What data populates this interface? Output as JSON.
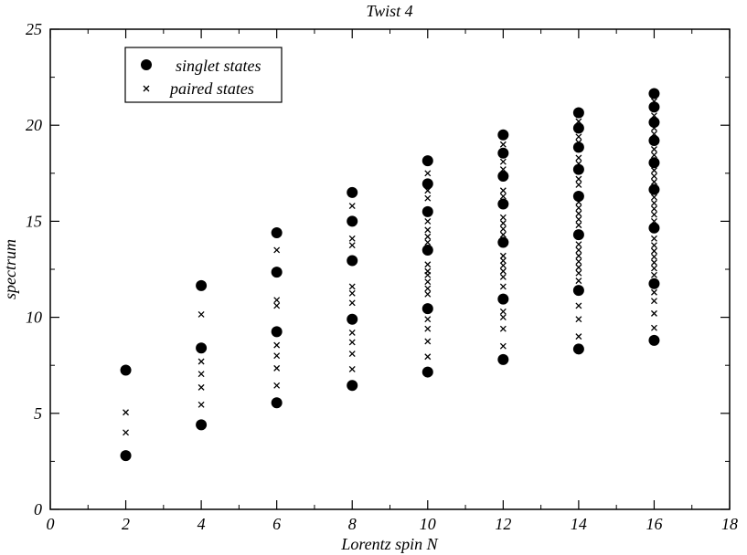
{
  "chart_data": {
    "type": "scatter",
    "title": "Twist 4",
    "xlabel": "Lorentz spin N",
    "ylabel": "spectrum",
    "xlim": [
      0,
      18
    ],
    "ylim": [
      0,
      25
    ],
    "x_ticks": [
      0,
      2,
      4,
      6,
      8,
      10,
      12,
      14,
      16,
      18
    ],
    "y_ticks": [
      0,
      5,
      10,
      15,
      20,
      25
    ],
    "x_minor_ticks": [
      1,
      3,
      5,
      7,
      9,
      11,
      13,
      15,
      17
    ],
    "y_minor_ticks": [
      2.5,
      7.5,
      12.5,
      17.5,
      22.5
    ],
    "legend_position": "top-left",
    "grid": false,
    "series": [
      {
        "name": "singlet states",
        "marker": "filled-circle",
        "color": "#000000",
        "points": [
          [
            2,
            2.8
          ],
          [
            2,
            7.25
          ],
          [
            4,
            4.4
          ],
          [
            4,
            8.4
          ],
          [
            4,
            11.65
          ],
          [
            6,
            5.55
          ],
          [
            6,
            9.25
          ],
          [
            6,
            12.35
          ],
          [
            6,
            14.4
          ],
          [
            8,
            6.45
          ],
          [
            8,
            9.9
          ],
          [
            8,
            12.95
          ],
          [
            8,
            15.0
          ],
          [
            8,
            16.5
          ],
          [
            10,
            7.15
          ],
          [
            10,
            10.45
          ],
          [
            10,
            13.5
          ],
          [
            10,
            15.5
          ],
          [
            10,
            16.95
          ],
          [
            10,
            18.15
          ],
          [
            12,
            7.8
          ],
          [
            12,
            10.95
          ],
          [
            12,
            13.9
          ],
          [
            12,
            15.9
          ],
          [
            12,
            17.35
          ],
          [
            12,
            18.55
          ],
          [
            12,
            19.5
          ],
          [
            14,
            8.35
          ],
          [
            14,
            11.4
          ],
          [
            14,
            14.3
          ],
          [
            14,
            16.3
          ],
          [
            14,
            17.7
          ],
          [
            14,
            18.85
          ],
          [
            14,
            19.85
          ],
          [
            14,
            20.65
          ],
          [
            16,
            8.8
          ],
          [
            16,
            11.75
          ],
          [
            16,
            14.65
          ],
          [
            16,
            16.65
          ],
          [
            16,
            18.05
          ],
          [
            16,
            19.2
          ],
          [
            16,
            20.15
          ],
          [
            16,
            20.95
          ],
          [
            16,
            21.65
          ]
        ]
      },
      {
        "name": "paired states",
        "marker": "cross",
        "color": "#000000",
        "points": [
          [
            2,
            4.0
          ],
          [
            2,
            5.05
          ],
          [
            4,
            5.45
          ],
          [
            4,
            6.35
          ],
          [
            4,
            7.05
          ],
          [
            4,
            7.7
          ],
          [
            4,
            10.15
          ],
          [
            6,
            6.45
          ],
          [
            6,
            7.35
          ],
          [
            6,
            8.0
          ],
          [
            6,
            8.55
          ],
          [
            6,
            10.6
          ],
          [
            6,
            10.9
          ],
          [
            6,
            13.5
          ],
          [
            8,
            7.3
          ],
          [
            8,
            8.1
          ],
          [
            8,
            8.7
          ],
          [
            8,
            9.2
          ],
          [
            8,
            10.75
          ],
          [
            8,
            11.25
          ],
          [
            8,
            11.6
          ],
          [
            8,
            13.75
          ],
          [
            8,
            14.1
          ],
          [
            8,
            15.8
          ],
          [
            10,
            7.95
          ],
          [
            10,
            8.75
          ],
          [
            10,
            9.4
          ],
          [
            10,
            9.9
          ],
          [
            10,
            11.2
          ],
          [
            10,
            11.5
          ],
          [
            10,
            11.85
          ],
          [
            10,
            12.2
          ],
          [
            10,
            12.4
          ],
          [
            10,
            12.75
          ],
          [
            10,
            13.9
          ],
          [
            10,
            14.2
          ],
          [
            10,
            14.55
          ],
          [
            10,
            15.0
          ],
          [
            10,
            16.2
          ],
          [
            10,
            16.6
          ],
          [
            10,
            17.5
          ],
          [
            12,
            8.5
          ],
          [
            12,
            9.4
          ],
          [
            12,
            10.0
          ],
          [
            12,
            10.3
          ],
          [
            12,
            11.6
          ],
          [
            12,
            12.1
          ],
          [
            12,
            12.4
          ],
          [
            12,
            12.7
          ],
          [
            12,
            12.95
          ],
          [
            12,
            13.2
          ],
          [
            12,
            14.3
          ],
          [
            12,
            14.6
          ],
          [
            12,
            14.9
          ],
          [
            12,
            15.2
          ],
          [
            12,
            16.3
          ],
          [
            12,
            16.6
          ],
          [
            12,
            17.7
          ],
          [
            12,
            18.1
          ],
          [
            12,
            19.0
          ],
          [
            14,
            9.0
          ],
          [
            14,
            9.9
          ],
          [
            14,
            10.6
          ],
          [
            14,
            11.9
          ],
          [
            14,
            12.3
          ],
          [
            14,
            12.6
          ],
          [
            14,
            12.9
          ],
          [
            14,
            13.2
          ],
          [
            14,
            13.5
          ],
          [
            14,
            13.8
          ],
          [
            14,
            14.8
          ],
          [
            14,
            15.1
          ],
          [
            14,
            15.4
          ],
          [
            14,
            15.7
          ],
          [
            14,
            16.0
          ],
          [
            14,
            16.9
          ],
          [
            14,
            17.2
          ],
          [
            14,
            18.0
          ],
          [
            14,
            18.3
          ],
          [
            14,
            19.1
          ],
          [
            14,
            19.4
          ],
          [
            14,
            20.2
          ],
          [
            16,
            9.45
          ],
          [
            16,
            10.2
          ],
          [
            16,
            10.85
          ],
          [
            16,
            11.3
          ],
          [
            16,
            12.2
          ],
          [
            16,
            12.55
          ],
          [
            16,
            12.85
          ],
          [
            16,
            13.15
          ],
          [
            16,
            13.45
          ],
          [
            16,
            13.75
          ],
          [
            16,
            14.1
          ],
          [
            16,
            15.0
          ],
          [
            16,
            15.35
          ],
          [
            16,
            15.65
          ],
          [
            16,
            15.95
          ],
          [
            16,
            16.25
          ],
          [
            16,
            17.05
          ],
          [
            16,
            17.35
          ],
          [
            16,
            17.65
          ],
          [
            16,
            18.45
          ],
          [
            16,
            18.75
          ],
          [
            16,
            19.55
          ],
          [
            16,
            19.85
          ],
          [
            16,
            20.5
          ],
          [
            16,
            21.25
          ]
        ]
      }
    ]
  }
}
